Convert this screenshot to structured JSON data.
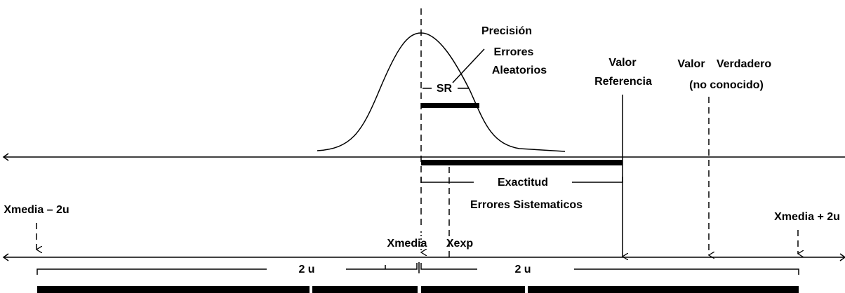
{
  "diagram": {
    "precision": {
      "title": "Precisión",
      "line1": "Errores",
      "line2": "Aleatorios",
      "sr": "SR"
    },
    "reference": {
      "line1": "Valor",
      "line2": "Referencia"
    },
    "true_value": {
      "word1": "Valor",
      "word2": "Verdadero",
      "line2": "(no conocido)"
    },
    "accuracy": {
      "label": "Exactitud",
      "sublabel": "Errores Sistematicos"
    },
    "axis_labels": {
      "left": "Xmedia – 2u",
      "right": "Xmedia + 2u",
      "mean": "Xmedia",
      "exp": "Xexp"
    },
    "intervals": {
      "left": "2 u",
      "right": "2 u"
    }
  }
}
